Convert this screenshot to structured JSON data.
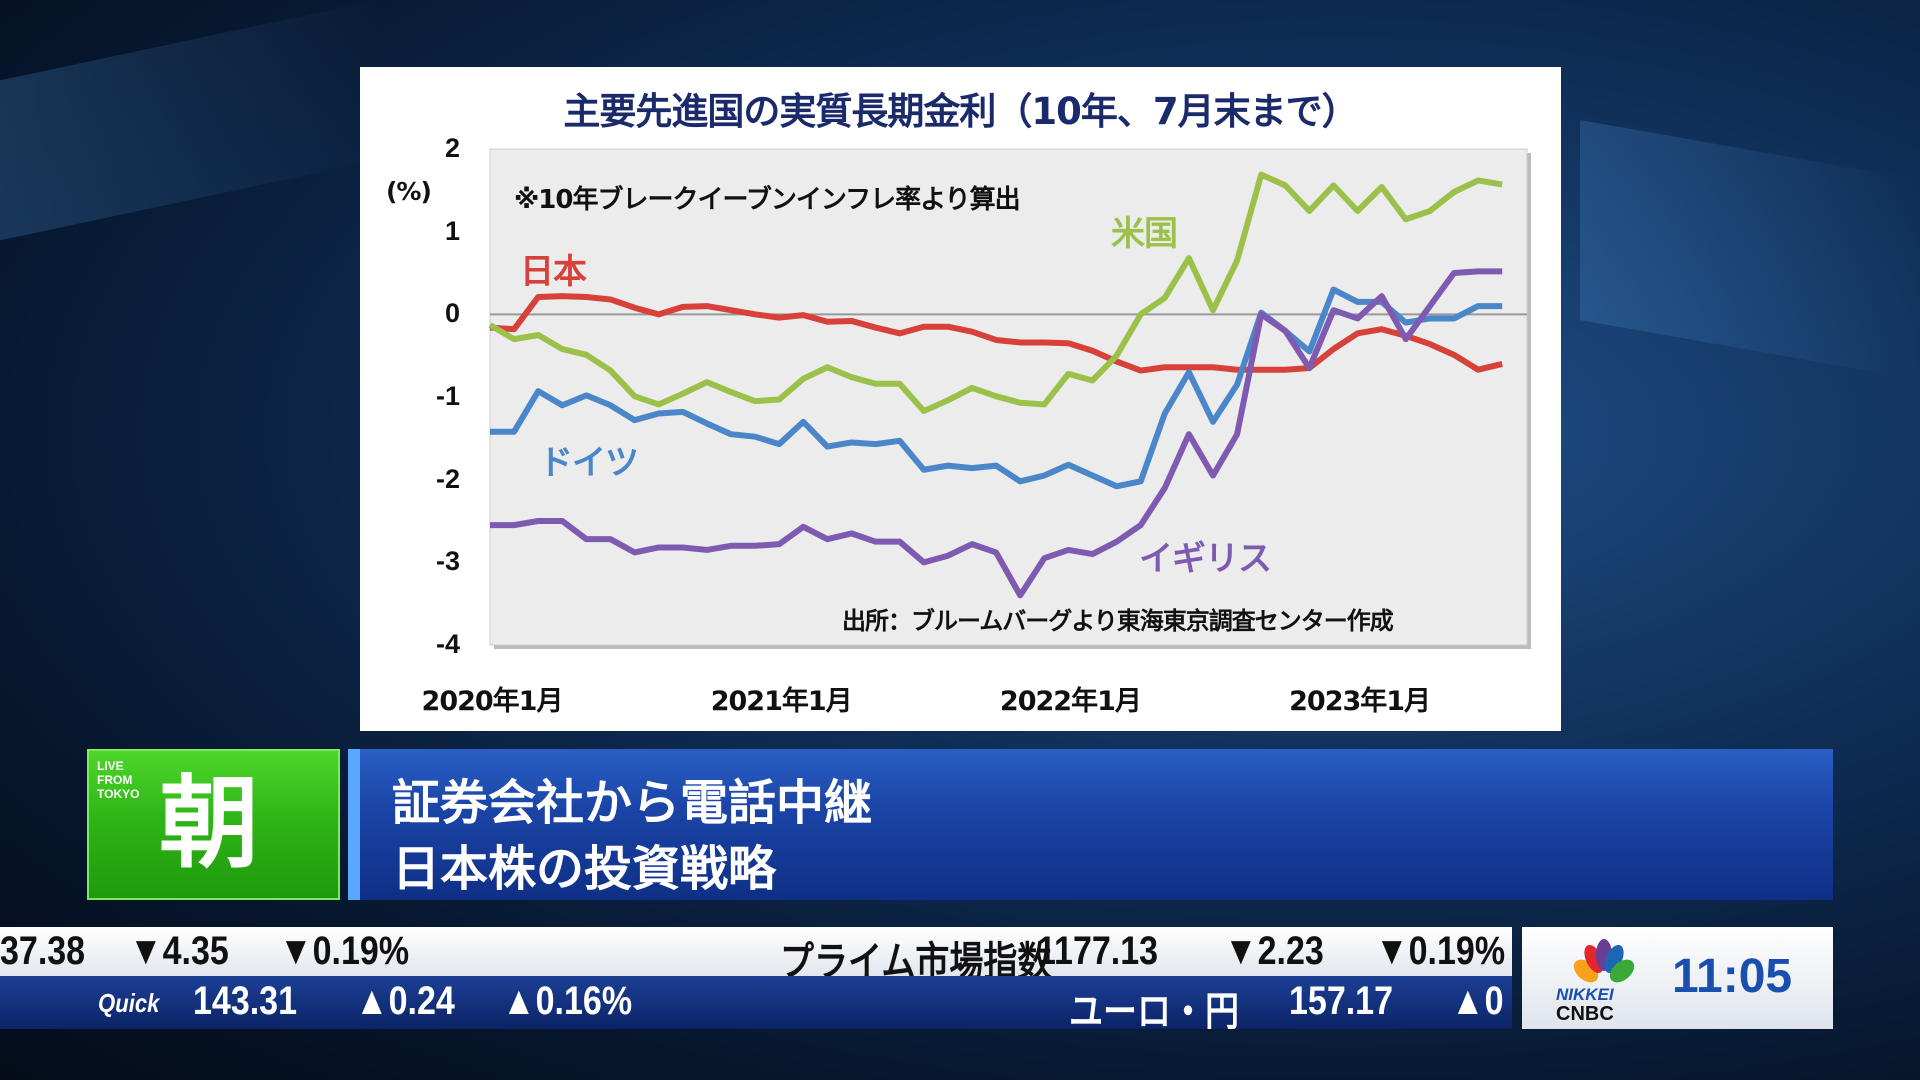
{
  "chart_data": {
    "type": "line",
    "title": "主要先進国の実質長期金利（10年、7月末まで）",
    "ylabel": "(%)",
    "note": "※10年ブレークイーブンインフレ率より算出",
    "source": "出所：ブルームバーグより東海東京調査センター作成",
    "ylim": [
      -4,
      2
    ],
    "yticks": [
      "2",
      "1",
      "0",
      "-1",
      "-2",
      "-3",
      "-4"
    ],
    "xticks": [
      "2020年1月",
      "2021年1月",
      "2022年1月",
      "2023年1月"
    ],
    "x_start": "2020-01",
    "x_end": "2023-07",
    "x_step": "month",
    "series": [
      {
        "name": "日本",
        "color": "#d8403a",
        "values": [
          -0.16,
          -0.18,
          0.21,
          0.22,
          0.21,
          0.18,
          0.08,
          0,
          0.09,
          0.1,
          0.05,
          0,
          -0.04,
          -0.01,
          -0.09,
          -0.08,
          -0.16,
          -0.23,
          -0.15,
          -0.15,
          -0.21,
          -0.31,
          -0.34,
          -0.34,
          -0.35,
          -0.44,
          -0.57,
          -0.68,
          -0.64,
          -0.64,
          -0.64,
          -0.67,
          -0.67,
          -0.67,
          -0.65,
          -0.42,
          -0.23,
          -0.18,
          -0.26,
          -0.36,
          -0.49,
          -0.67,
          -0.6
        ]
      },
      {
        "name": "米国",
        "color": "#9bc14a",
        "values": [
          -0.13,
          -0.3,
          -0.25,
          -0.42,
          -0.49,
          -0.68,
          -0.99,
          -1.09,
          -0.96,
          -0.82,
          -0.94,
          -1.05,
          -1.03,
          -0.78,
          -0.64,
          -0.76,
          -0.84,
          -0.84,
          -1.17,
          -1.04,
          -0.89,
          -0.99,
          -1.07,
          -1.09,
          -0.72,
          -0.8,
          -0.5,
          0,
          0.2,
          0.68,
          0.05,
          0.65,
          1.69,
          1.56,
          1.25,
          1.56,
          1.25,
          1.54,
          1.15,
          1.25,
          1.48,
          1.62,
          1.57
        ]
      },
      {
        "name": "ドイツ",
        "color": "#4a86c8",
        "values": [
          -1.42,
          -1.42,
          -0.93,
          -1.1,
          -0.98,
          -1.1,
          -1.28,
          -1.2,
          -1.18,
          -1.32,
          -1.45,
          -1.48,
          -1.57,
          -1.3,
          -1.6,
          -1.55,
          -1.57,
          -1.53,
          -1.88,
          -1.83,
          -1.86,
          -1.83,
          -2.02,
          -1.95,
          -1.82,
          -1.95,
          -2.08,
          -2.02,
          -1.2,
          -0.7,
          -1.3,
          -0.85,
          0.02,
          -0.2,
          -0.45,
          0.3,
          0.15,
          0.15,
          -0.1,
          -0.05,
          -0.05,
          0.1,
          0.1
        ]
      },
      {
        "name": "イギリス",
        "color": "#7e5bb0",
        "values": [
          -2.55,
          -2.55,
          -2.5,
          -2.5,
          -2.72,
          -2.72,
          -2.88,
          -2.82,
          -2.82,
          -2.85,
          -2.8,
          -2.8,
          -2.78,
          -2.57,
          -2.72,
          -2.65,
          -2.75,
          -2.75,
          -3.0,
          -2.92,
          -2.78,
          -2.88,
          -3.4,
          -2.95,
          -2.85,
          -2.9,
          -2.75,
          -2.55,
          -2.1,
          -1.45,
          -1.95,
          -1.45,
          0,
          -0.2,
          -0.65,
          0.05,
          -0.05,
          0.22,
          -0.3,
          0.1,
          0.5,
          0.52,
          0.52
        ]
      }
    ]
  },
  "banner": {
    "badge_small": "LIVE FROM TOKYO",
    "badge_big": "朝",
    "line1": "証券会社から電話中継",
    "line2": "日本株の投資戦略"
  },
  "ticker": {
    "row1": [
      {
        "t": "37.38"
      },
      {
        "t": "▼4.35",
        "d": "dn"
      },
      {
        "t": "▼0.19%",
        "d": "dn"
      },
      {
        "t": "プライム市場指数"
      },
      {
        "t": "1177.13"
      },
      {
        "t": "▼2.23",
        "d": "dn"
      },
      {
        "t": "▼0.19%",
        "d": "dn"
      }
    ],
    "row2": [
      {
        "t": "Quick"
      },
      {
        "t": "143.31"
      },
      {
        "t": "▲0.24",
        "d": "up"
      },
      {
        "t": "▲0.16%",
        "d": "up"
      },
      {
        "t": "ユーロ・円"
      },
      {
        "t": "157.17"
      },
      {
        "t": "▲0",
        "d": "up"
      }
    ]
  },
  "logo": {
    "nikkei": "NIKKEI",
    "cnbc": "CNBC",
    "time": "11:05"
  }
}
